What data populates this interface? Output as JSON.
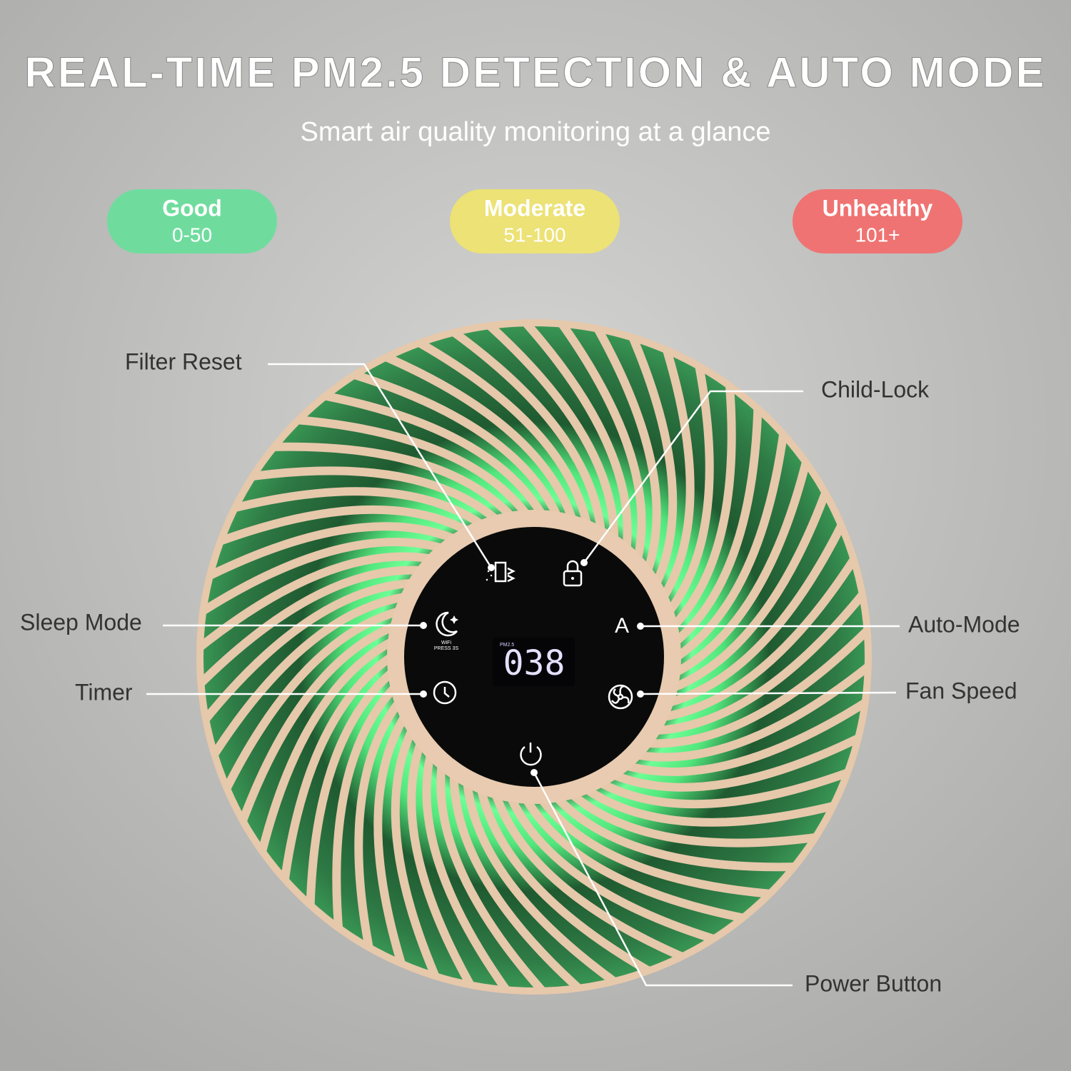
{
  "header": {
    "title": "REAL-TIME PM2.5 DETECTION & AUTO MODE",
    "subtitle": "Smart air quality monitoring at a glance"
  },
  "levels": [
    {
      "label": "Good",
      "range": "0-50"
    },
    {
      "label": "Moderate",
      "range": "51-100"
    },
    {
      "label": "Unhealthy",
      "range": "101+"
    }
  ],
  "display": {
    "label": "PM2.5",
    "reading": "038",
    "wifi": "WiFi",
    "press": "PRESS 3S",
    "auto": "A"
  },
  "callouts": [
    "Filter Reset",
    "Child-Lock",
    "Sleep Mode",
    "Auto-Mode",
    "Timer",
    "Fan Speed",
    "Power Button"
  ]
}
